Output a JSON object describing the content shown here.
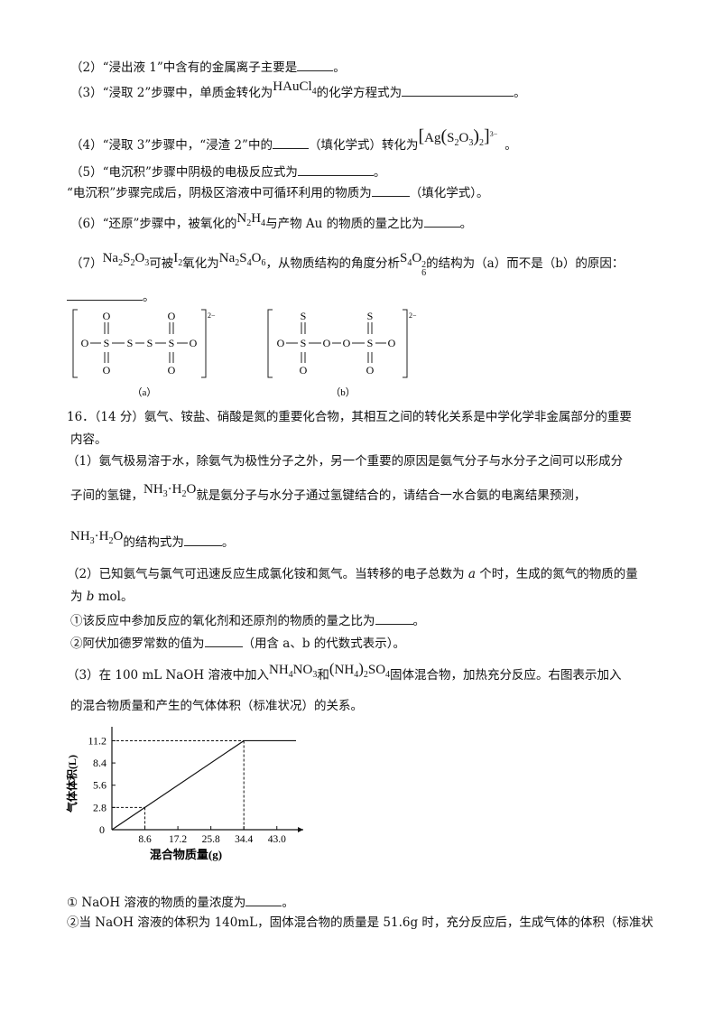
{
  "q15": {
    "p2": {
      "text": "（2）“浸出液 1”中含有的金属离子主要是",
      "end": "。"
    },
    "p3": {
      "pre": "（3）“浸取 2”步骤中，单质金转化为",
      "formula": "HAuCl",
      "sub": "4",
      "post": "的化学方程式为",
      "end": "。"
    },
    "p4": {
      "pre": "（4）“浸取 3”步骤中，“浸渣 2”中的",
      "mid": "（填化学式）转化为",
      "f1": "Ag",
      "f2": "S",
      "f3": "O",
      "s2": "2",
      "s3": "3",
      "s4": "2",
      "charge": "3−",
      "end": "。"
    },
    "p5": {
      "text": "（5）“电沉积”步骤中阴极的电极反应式为",
      "end": "。"
    },
    "p5b": {
      "text": "“电沉积”步骤完成后，阴极区溶液中可循环利用的物质为",
      "end": "（填化学式）。"
    },
    "p6": {
      "pre": "（6）“还原”步骤中，被氧化的",
      "f": "N",
      "s1": "2",
      "f2": "H",
      "s2": "4",
      "post": "与产物 Au 的物质的量之比为",
      "end": "。"
    },
    "p7": {
      "pre": "（7）",
      "a": "Na",
      "a1": "2",
      "a2": "S",
      "a3": "2",
      "a4": "O",
      "a5": "3",
      "mid1": "可被",
      "b": "I",
      "b1": "2",
      "mid2": "氧化为",
      "c": "Na",
      "c1": "2",
      "c2": "S",
      "c3": "4",
      "c4": "O",
      "c5": "6",
      "mid3": "，从物质结构的角度分析",
      "d": "S",
      "d1": "4",
      "d2": "O",
      "d3": "6",
      "dsup": "2",
      "post": "的结构为（a）而不是（b）的原因："
    },
    "p7end": "。",
    "struct": {
      "a_label": "（a）",
      "b_label": "（b）",
      "charge": "2−",
      "O": "O",
      "S": "S"
    }
  },
  "q16": {
    "head1": "16．（14 分）氨气、铵盐、硝酸是氮的重要化合物，其相互之间的转化关系是中学化学非金属部分的重要",
    "head2": "内容。",
    "p1a": "（1）氨气极易溶于水，除氨气为极性分子之外，另一个重要的原因是氨气分子与水分子之间可以形成分",
    "p1b_pre": "子间的氢键，",
    "nh3": "NH",
    "nh3s": "3",
    "dot": "·",
    "h2o": "H",
    "h2os": "2",
    "o": "O",
    "p1b_post": "就是氨分子与水分子通过氢键结合的，请结合一水合氨的电离结果预测，",
    "p1c_post": "的结构式为",
    "p1c_end": "。",
    "p2a_pre": "（2）已知氨气与氯气可迅速反应生成氯化铵和氮气。当转移的电子总数为 ",
    "a": "a",
    "p2a_post": " 个时，生成的氮气的物质的量",
    "p2b_pre": "为 ",
    "b": "b",
    "p2b_post": " mol。",
    "p2c": "①该反应中参加反应的氧化剂和还原剂的物质的量之比为",
    "p2c_end": "。",
    "p2d": "②阿伏加德罗常数的值为",
    "p2d_end": "（用含 a、b 的代数式表示）。",
    "p3a_pre": "（3）在 100 mL NaOH 溶液中加入",
    "nh4no3": "NH",
    "nh4no3_s": "4",
    "no3": "NO",
    "no3_s": "3",
    "and": "和",
    "nh4": "NH",
    "nh4_s": "4",
    "so4_2": "2",
    "so4": "SO",
    "so4_s": "4",
    "p3a_post": "固体混合物，加热充分反应。右图表示加入",
    "p3b": "的混合物质量和产生的气体体积（标准状况）的关系。",
    "q1": "① NaOH 溶液的物质的量浓度为",
    "q1_end": "。",
    "q2": "②当 NaOH 溶液的体积为 140mL，固体混合物的质量是 51.6g 时，充分反应后，生成气体的体积（标准状"
  },
  "chart_data": {
    "type": "line",
    "xlabel": "混合物质量(g)",
    "ylabel": "气体体积(L)",
    "x_ticks": [
      "8.6",
      "17.2",
      "25.8",
      "34.4",
      "43.0"
    ],
    "y_ticks": [
      "2.8",
      "5.6",
      "8.4",
      "11.2"
    ],
    "origin_label": "0",
    "xlim": [
      0,
      48
    ],
    "ylim": [
      0,
      12.5
    ],
    "series": [
      {
        "x": [
          0,
          34.4,
          48
        ],
        "y": [
          0,
          11.2,
          11.2
        ]
      }
    ],
    "guides": [
      {
        "x": 8.6,
        "y": 2.8
      },
      {
        "x": 34.4,
        "y": 11.2
      }
    ]
  }
}
